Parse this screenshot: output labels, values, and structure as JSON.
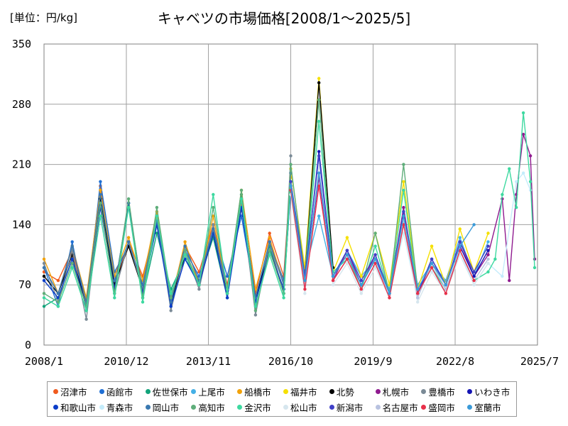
{
  "chart_data": {
    "type": "line",
    "title": "キャベツの市場価格[2008/1～2025/5]",
    "unit_label": "[単位：円/kg]",
    "xlabel": "",
    "ylabel": "",
    "x_range": [
      2008.0,
      2025.5
    ],
    "ylim": [
      0,
      350
    ],
    "y_ticks": [
      0,
      70,
      140,
      210,
      280,
      350
    ],
    "x_ticks": [
      {
        "label": "2008/1",
        "value": 2008.0
      },
      {
        "label": "2010/12",
        "value": 2010.92
      },
      {
        "label": "2013/11",
        "value": 2013.83
      },
      {
        "label": "2016/10",
        "value": 2016.75
      },
      {
        "label": "2019/9",
        "value": 2019.67
      },
      {
        "label": "2022/8",
        "value": 2022.58
      },
      {
        "label": "2025/7",
        "value": 2025.5
      }
    ],
    "grid": true,
    "legend_position": "bottom",
    "series": [
      {
        "name": "沼津市",
        "color": "#f05a1e",
        "x": [
          2008.0,
          2008.5,
          2009.0,
          2009.5,
          2010.0,
          2010.5,
          2011.0,
          2011.5,
          2012.0,
          2012.5,
          2013.0,
          2013.5,
          2014.0,
          2014.5,
          2015.0,
          2015.5,
          2016.0,
          2016.5,
          2016.75
        ],
        "y": [
          85,
          75,
          110,
          50,
          185,
          70,
          120,
          80,
          145,
          55,
          115,
          85,
          140,
          70,
          165,
          60,
          130,
          80,
          200
        ]
      },
      {
        "name": "函館市",
        "color": "#1f6fd4",
        "x": [
          2008.0,
          2008.5,
          2009.0,
          2009.5,
          2010.0,
          2010.5,
          2011.0,
          2011.5,
          2012.0,
          2012.5,
          2013.0,
          2013.5,
          2014.0,
          2014.5,
          2015.0,
          2015.5,
          2016.0,
          2016.5,
          2016.75
        ],
        "y": [
          90,
          45,
          120,
          40,
          190,
          85,
          115,
          70,
          150,
          45,
          110,
          80,
          135,
          80,
          150,
          55,
          120,
          75,
          190
        ]
      },
      {
        "name": "佐世保市",
        "color": "#12a37a",
        "x": [
          2008.0,
          2008.5,
          2009.0,
          2009.5,
          2010.0,
          2010.5,
          2011.0,
          2011.5,
          2012.0,
          2012.5,
          2013.0,
          2013.5,
          2014.0,
          2014.5,
          2015.0,
          2015.5,
          2016.0,
          2016.5,
          2016.75
        ],
        "y": [
          45,
          55,
          100,
          45,
          170,
          65,
          165,
          55,
          130,
          65,
          100,
          75,
          125,
          55,
          175,
          50,
          115,
          60,
          185
        ]
      },
      {
        "name": "上尾市",
        "color": "#45b0e6",
        "x": [
          2016.75,
          2017.25,
          2017.75,
          2018.25,
          2018.75,
          2019.25,
          2019.75,
          2020.25,
          2020.75,
          2021.25,
          2021.75,
          2022.25,
          2022.75,
          2023.25,
          2023.75
        ],
        "y": [
          190,
          85,
          150,
          80,
          110,
          80,
          100,
          65,
          155,
          70,
          95,
          75,
          125,
          80,
          120
        ]
      },
      {
        "name": "船橋市",
        "color": "#f2a20a",
        "x": [
          2008.0,
          2008.5,
          2009.0,
          2009.5,
          2010.0,
          2010.5,
          2011.0,
          2011.5,
          2012.0,
          2012.5,
          2013.0,
          2013.5,
          2014.0,
          2014.5,
          2015.0,
          2015.5,
          2016.0,
          2016.5,
          2016.75
        ],
        "y": [
          100,
          60,
          115,
          55,
          180,
          80,
          125,
          75,
          155,
          50,
          120,
          70,
          150,
          60,
          180,
          65,
          125,
          70,
          195
        ]
      },
      {
        "name": "福井市",
        "color": "#f5e000",
        "x": [
          2016.75,
          2017.25,
          2017.75,
          2018.25,
          2018.75,
          2019.25,
          2019.75,
          2020.25,
          2020.75,
          2021.25,
          2021.75,
          2022.25,
          2022.75,
          2023.25,
          2023.75
        ],
        "y": [
          205,
          90,
          310,
          85,
          125,
          80,
          130,
          70,
          190,
          65,
          115,
          70,
          135,
          85,
          130
        ]
      },
      {
        "name": "北勢",
        "color": "#000000",
        "x": [
          2008.0,
          2008.5,
          2009.0,
          2009.5,
          2010.0,
          2010.5,
          2011.0,
          2011.5,
          2012.0,
          2012.5,
          2013.0,
          2013.5,
          2014.0,
          2014.5,
          2015.0,
          2015.5,
          2016.0,
          2016.5,
          2016.75,
          2017.25,
          2017.75,
          2018.25
        ],
        "y": [
          80,
          60,
          105,
          45,
          170,
          70,
          115,
          65,
          140,
          50,
          105,
          70,
          130,
          60,
          160,
          55,
          110,
          65,
          185,
          80,
          305,
          90
        ]
      },
      {
        "name": "札幌市",
        "color": "#8f1a8f",
        "x": [
          2016.75,
          2017.25,
          2017.75,
          2018.25,
          2018.75,
          2019.25,
          2019.75,
          2020.25,
          2020.75,
          2021.25,
          2021.75,
          2022.25,
          2022.75,
          2023.25,
          2023.75,
          2024.25,
          2024.5,
          2024.75,
          2025.0,
          2025.25,
          2025.4
        ],
        "y": [
          180,
          70,
          195,
          75,
          110,
          70,
          105,
          60,
          160,
          60,
          95,
          70,
          120,
          80,
          105,
          170,
          75,
          175,
          245,
          220,
          100
        ]
      },
      {
        "name": "豊橋市",
        "color": "#7a8a96",
        "x": [
          2008.0,
          2008.5,
          2009.0,
          2009.5,
          2010.0,
          2010.5,
          2011.0,
          2011.5,
          2012.0,
          2012.5,
          2013.0,
          2013.5,
          2014.0,
          2014.5,
          2015.0,
          2015.5,
          2016.0,
          2016.5,
          2016.75
        ],
        "y": [
          95,
          50,
          110,
          30,
          165,
          60,
          120,
          65,
          150,
          40,
          110,
          65,
          140,
          55,
          170,
          35,
          120,
          60,
          220
        ]
      },
      {
        "name": "いわき市",
        "color": "#1414b4",
        "x": [
          2016.75,
          2017.25,
          2017.75,
          2018.25,
          2018.75,
          2019.25,
          2019.75,
          2020.25,
          2020.75,
          2021.25,
          2021.75,
          2022.25,
          2022.75,
          2023.25,
          2023.75
        ],
        "y": [
          185,
          75,
          225,
          80,
          105,
          70,
          100,
          60,
          150,
          60,
          100,
          70,
          115,
          80,
          110
        ]
      },
      {
        "name": "和歌山市",
        "color": "#0a3cc8",
        "x": [
          2008.0,
          2008.5,
          2009.0,
          2009.5,
          2010.0,
          2010.5,
          2011.0,
          2011.5,
          2012.0,
          2012.5,
          2013.0,
          2013.5,
          2014.0,
          2014.5,
          2015.0,
          2015.5,
          2016.0,
          2016.5,
          2016.75
        ],
        "y": [
          75,
          55,
          100,
          45,
          160,
          65,
          165,
          60,
          140,
          45,
          100,
          70,
          130,
          55,
          160,
          50,
          110,
          65,
          180
        ]
      },
      {
        "name": "青森市",
        "color": "#c4ecfb",
        "x": [
          2019.75,
          2020.25,
          2020.75,
          2021.25,
          2021.75,
          2022.25,
          2022.75,
          2023.25,
          2023.75,
          2024.25,
          2024.75,
          2025.0,
          2025.25
        ],
        "y": [
          90,
          60,
          130,
          55,
          95,
          60,
          110,
          70,
          95,
          80,
          190,
          200,
          180
        ]
      },
      {
        "name": "岡山市",
        "color": "#3a78b0",
        "x": [
          2008.0,
          2008.5,
          2009.0,
          2009.5,
          2010.0,
          2010.5,
          2011.0,
          2011.5,
          2012.0,
          2012.5,
          2013.0,
          2013.5,
          2014.0,
          2014.5,
          2015.0,
          2015.5,
          2016.0,
          2016.5,
          2016.75
        ],
        "y": [
          90,
          60,
          115,
          50,
          175,
          75,
          120,
          70,
          145,
          50,
          115,
          75,
          135,
          65,
          170,
          55,
          120,
          70,
          200
        ]
      },
      {
        "name": "高知市",
        "color": "#5fae7a",
        "x": [
          2008.0,
          2008.5,
          2009.0,
          2009.5,
          2010.0,
          2010.5,
          2011.0,
          2011.5,
          2012.0,
          2012.5,
          2013.0,
          2013.5,
          2014.0,
          2014.5,
          2015.0,
          2015.5,
          2016.0,
          2016.5,
          2016.75,
          2017.25,
          2017.75,
          2018.25,
          2018.75,
          2019.25,
          2019.75,
          2020.25,
          2020.75,
          2021.25
        ],
        "y": [
          60,
          50,
          95,
          45,
          165,
          60,
          170,
          55,
          160,
          55,
          110,
          70,
          160,
          65,
          180,
          40,
          110,
          60,
          210,
          80,
          285,
          80,
          105,
          65,
          130,
          60,
          210,
          65
        ]
      },
      {
        "name": "金沢市",
        "color": "#3dd9a0",
        "x": [
          2008.0,
          2008.5,
          2009.0,
          2009.5,
          2010.0,
          2010.5,
          2011.0,
          2011.5,
          2012.0,
          2012.5,
          2013.0,
          2013.5,
          2014.0,
          2014.5,
          2015.0,
          2015.5,
          2016.0,
          2016.5,
          2016.75,
          2017.25,
          2017.75,
          2018.25,
          2018.75,
          2019.25,
          2019.75,
          2020.25,
          2020.75,
          2021.25,
          2021.75,
          2022.25,
          2022.75,
          2023.25,
          2023.75,
          2024.0,
          2024.25,
          2024.5,
          2024.75,
          2025.0,
          2025.25,
          2025.4
        ],
        "y": [
          55,
          45,
          90,
          40,
          150,
          55,
          160,
          50,
          150,
          60,
          105,
          70,
          175,
          60,
          170,
          45,
          105,
          55,
          190,
          75,
          260,
          85,
          100,
          65,
          115,
          60,
          180,
          60,
          90,
          65,
          110,
          75,
          85,
          100,
          175,
          205,
          160,
          270,
          190,
          90
        ]
      },
      {
        "name": "松山市",
        "color": "#d6e6ee",
        "x": [
          2016.75,
          2017.25,
          2017.75,
          2018.25,
          2018.75,
          2019.25,
          2019.75,
          2020.25,
          2020.75,
          2021.25,
          2021.75,
          2022.25,
          2022.75,
          2023.25,
          2023.75
        ],
        "y": [
          175,
          60,
          210,
          70,
          95,
          60,
          90,
          55,
          140,
          50,
          85,
          60,
          105,
          70,
          95
        ]
      },
      {
        "name": "新潟市",
        "color": "#4040c8",
        "x": [
          2016.75,
          2017.25,
          2017.75,
          2018.25,
          2018.75,
          2019.25,
          2019.75,
          2020.25,
          2020.75,
          2021.25,
          2021.75,
          2022.25,
          2022.75,
          2023.25,
          2023.75
        ],
        "y": [
          190,
          80,
          220,
          80,
          110,
          75,
          105,
          60,
          155,
          60,
          100,
          70,
          120,
          85,
          115
        ]
      },
      {
        "name": "名古屋市",
        "color": "#b8c2e0",
        "x": [
          2016.75,
          2017.25,
          2017.75,
          2018.25,
          2018.75,
          2019.25,
          2019.75,
          2020.25,
          2020.75,
          2021.25,
          2021.75,
          2022.25,
          2022.75,
          2023.25,
          2023.75
        ],
        "y": [
          185,
          70,
          200,
          75,
          100,
          65,
          95,
          60,
          145,
          55,
          95,
          65,
          110,
          75,
          100
        ]
      },
      {
        "name": "盛岡市",
        "color": "#e8304a",
        "x": [
          2016.75,
          2017.25,
          2017.75,
          2018.25,
          2018.75,
          2019.25,
          2019.75,
          2020.25,
          2020.75,
          2021.25,
          2021.75,
          2022.25,
          2022.75,
          2023.25
        ],
        "y": [
          180,
          65,
          185,
          75,
          100,
          65,
          95,
          55,
          140,
          60,
          90,
          60,
          110,
          75
        ]
      },
      {
        "name": "室蘭市",
        "color": "#3a9ad8",
        "x": [
          2016.75,
          2017.25,
          2017.75,
          2018.25,
          2018.75,
          2019.25,
          2019.75,
          2020.25,
          2020.75,
          2021.25,
          2021.75,
          2022.25,
          2022.75,
          2023.25
        ],
        "y": [
          185,
          75,
          200,
          80,
          105,
          70,
          100,
          60,
          150,
          65,
          95,
          70,
          115,
          140
        ]
      }
    ]
  }
}
